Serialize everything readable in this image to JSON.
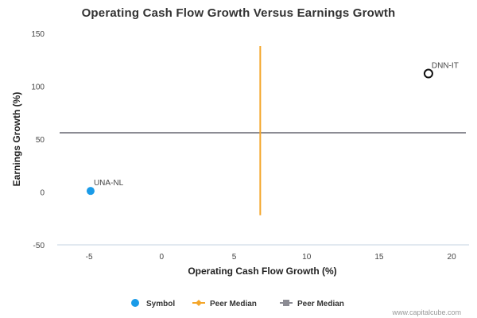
{
  "chart_data": {
    "type": "scatter",
    "title": "Operating Cash Flow Growth Versus Earnings Growth",
    "xlabel": "Operating Cash Flow Growth (%)",
    "ylabel": "Earnings Growth (%)",
    "xlim": [
      -7.2,
      21.2
    ],
    "ylim": [
      -50,
      150
    ],
    "x_ticks": [
      -5,
      0,
      5,
      10,
      15,
      20
    ],
    "y_ticks": [
      -50,
      0,
      50,
      100,
      150
    ],
    "grid": false,
    "points": [
      {
        "label": "UNA-NL",
        "x": -4.9,
        "y": 1,
        "style": "filled",
        "color": "#1a9be8"
      },
      {
        "label": "DNN-IT",
        "x": 18.4,
        "y": 112,
        "style": "hollow",
        "color": "#111111"
      }
    ],
    "peer_median_x": {
      "value": 6.8,
      "y_range": [
        -22,
        138
      ],
      "color": "#f4a62a"
    },
    "peer_median_y": {
      "value": 56,
      "color": "#8c8c94"
    },
    "legend": {
      "placement": "bottom",
      "items": [
        {
          "name": "Symbol",
          "color": "#1a9be8",
          "marker": "circle"
        },
        {
          "name": "Peer Median",
          "color": "#f4a62a",
          "marker": "diamond-line"
        },
        {
          "name": "Peer Median",
          "color": "#8c8c94",
          "marker": "square-line"
        }
      ]
    }
  },
  "credit": "www.capitalcube.com"
}
